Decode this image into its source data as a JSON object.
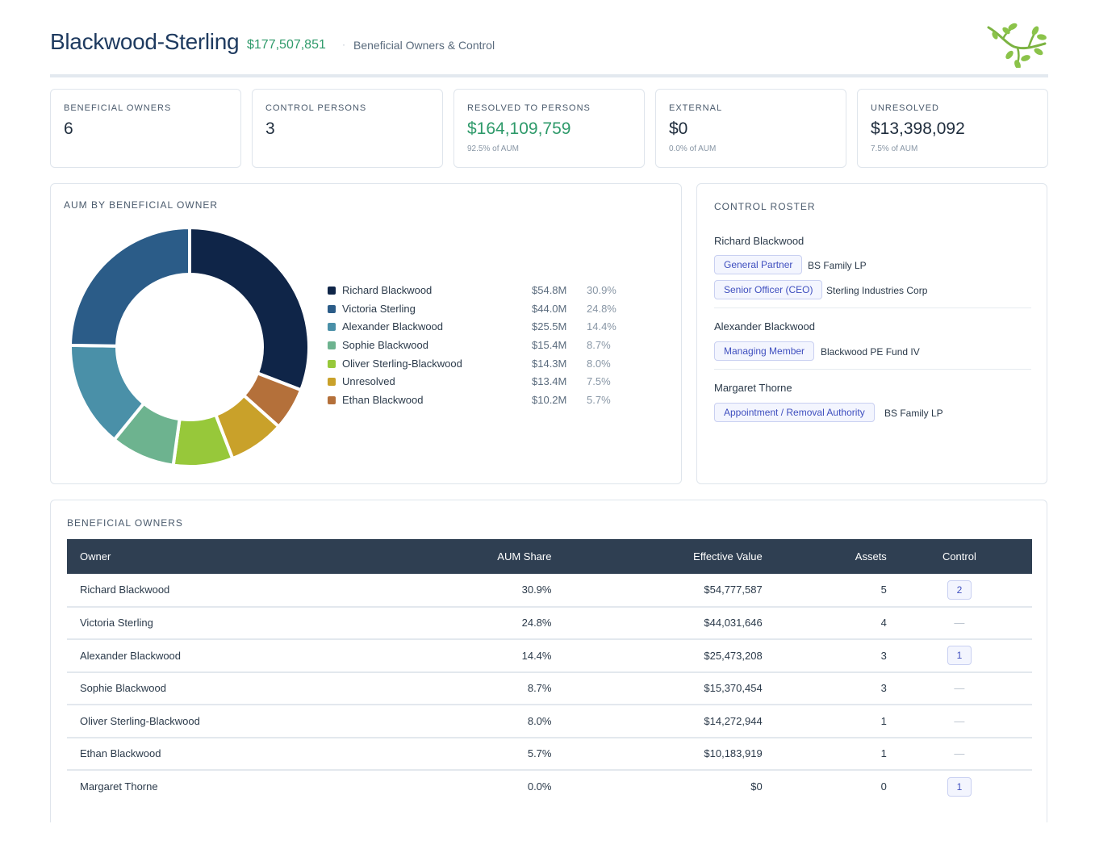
{
  "header": {
    "title": "Blackwood-Sterling",
    "aum": "$177,507,851",
    "separator": "·",
    "subtitle": "Beneficial Owners & Control",
    "logo_icon": "branch-leaves-icon"
  },
  "kpis": [
    {
      "label": "BENEFICIAL OWNERS",
      "value": "6",
      "note": ""
    },
    {
      "label": "CONTROL PERSONS",
      "value": "3",
      "note": ""
    },
    {
      "label": "RESOLVED TO PERSONS",
      "value": "$164,109,759",
      "note": "92.5% of AUM"
    },
    {
      "label": "EXTERNAL",
      "value": "$0",
      "note": "0.0% of AUM"
    },
    {
      "label": "UNRESOLVED",
      "value": "$13,398,092",
      "note": "7.5% of AUM"
    }
  ],
  "aum_panel": {
    "label": "AUM BY BENEFICIAL OWNER"
  },
  "chart_data": {
    "type": "pie",
    "title": "AUM BY BENEFICIAL OWNER",
    "donut": true,
    "legend_position": "right",
    "categories": [
      "Richard Blackwood",
      "Victoria Sterling",
      "Alexander Blackwood",
      "Sophie Blackwood",
      "Oliver Sterling-Blackwood",
      "Unresolved",
      "Ethan Blackwood"
    ],
    "values": [
      54.8,
      44.0,
      25.5,
      15.4,
      14.3,
      13.4,
      10.2
    ],
    "value_labels": [
      "$54.8M",
      "$44.0M",
      "$25.5M",
      "$15.4M",
      "$14.3M",
      "$13.4M",
      "$10.2M"
    ],
    "percent_labels": [
      "30.9%",
      "24.8%",
      "14.4%",
      "8.7%",
      "8.0%",
      "7.5%",
      "5.7%"
    ],
    "colors": [
      "#0f2548",
      "#2b5c88",
      "#4a90a8",
      "#6db38f",
      "#97c83a",
      "#c9a12a",
      "#b4703a"
    ],
    "slice_order_clockwise_from_top": [
      "Richard Blackwood",
      "Ethan Blackwood",
      "Unresolved",
      "Oliver Sterling-Blackwood",
      "Sophie Blackwood",
      "Alexander Blackwood",
      "Victoria Sterling"
    ]
  },
  "roster": {
    "label": "CONTROL ROSTER",
    "people": [
      {
        "name": "Richard Blackwood",
        "roles": [
          {
            "role": "General Partner",
            "entity": "BS Family LP"
          },
          {
            "role": "Senior Officer (CEO)",
            "entity": "Sterling Industries Corp"
          }
        ]
      },
      {
        "name": "Alexander Blackwood",
        "roles": [
          {
            "role": "Managing Member",
            "entity": "Blackwood PE Fund IV"
          }
        ]
      },
      {
        "name": "Margaret Thorne",
        "roles": [
          {
            "role": "Appointment / Removal Authority",
            "entity": "BS Family LP"
          }
        ]
      }
    ]
  },
  "owners_table": {
    "label": "BENEFICIAL OWNERS",
    "columns": [
      "Owner",
      "AUM Share",
      "Effective Value",
      "Assets",
      "Control"
    ],
    "rows": [
      {
        "owner": "Richard Blackwood",
        "share": "30.9%",
        "value": "$54,777,587",
        "assets": "5",
        "control": "2"
      },
      {
        "owner": "Victoria Sterling",
        "share": "24.8%",
        "value": "$44,031,646",
        "assets": "4",
        "control": "—"
      },
      {
        "owner": "Alexander Blackwood",
        "share": "14.4%",
        "value": "$25,473,208",
        "assets": "3",
        "control": "1"
      },
      {
        "owner": "Sophie Blackwood",
        "share": "8.7%",
        "value": "$15,370,454",
        "assets": "3",
        "control": "—"
      },
      {
        "owner": "Oliver Sterling-Blackwood",
        "share": "8.0%",
        "value": "$14,272,944",
        "assets": "1",
        "control": "—"
      },
      {
        "owner": "Ethan Blackwood",
        "share": "5.7%",
        "value": "$10,183,919",
        "assets": "1",
        "control": "—"
      },
      {
        "owner": "Margaret Thorne",
        "share": "0.0%",
        "value": "$0",
        "assets": "0",
        "control": "1"
      }
    ]
  }
}
